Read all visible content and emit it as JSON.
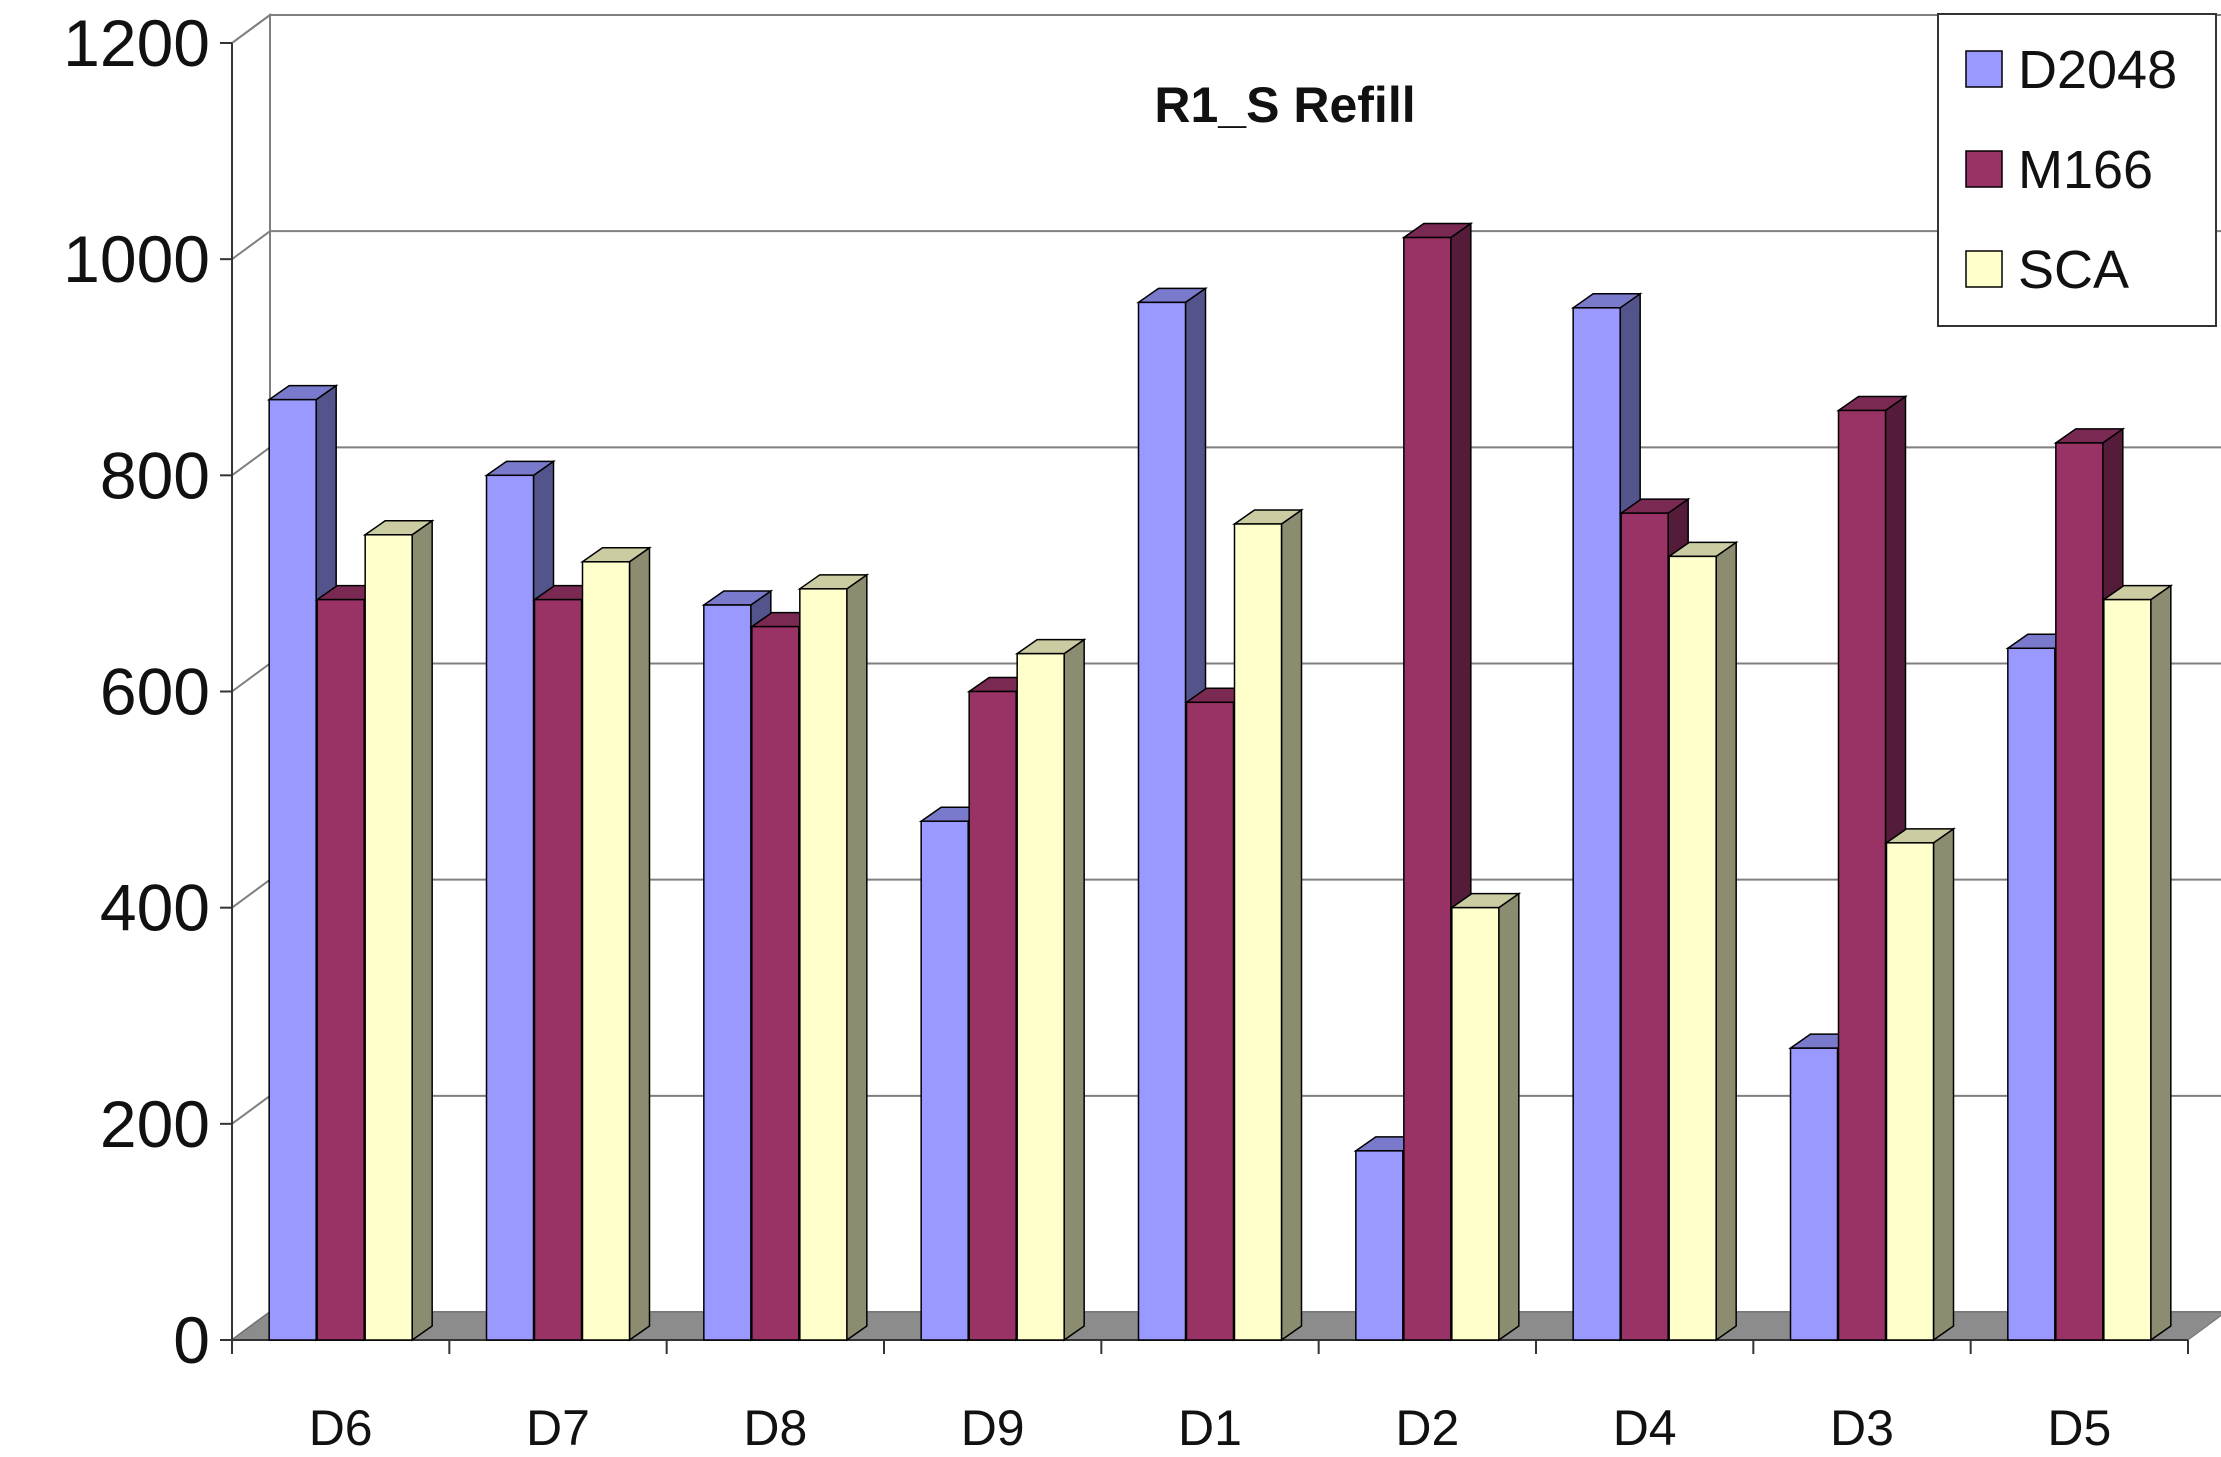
{
  "chart_data": {
    "type": "bar",
    "title": "R1_S Refill",
    "xlabel": "",
    "ylabel": "",
    "categories": [
      "D6",
      "D7",
      "D8",
      "D9",
      "D1",
      "D2",
      "D4",
      "D3",
      "D5"
    ],
    "series": [
      {
        "name": "D2048",
        "color": "#9999ff",
        "values": [
          870,
          800,
          680,
          480,
          960,
          175,
          955,
          270,
          640
        ]
      },
      {
        "name": "M166",
        "color": "#993366",
        "values": [
          685,
          685,
          660,
          600,
          590,
          1020,
          765,
          860,
          830
        ]
      },
      {
        "name": "SCA",
        "color": "#ffffcc",
        "values": [
          745,
          720,
          695,
          635,
          755,
          400,
          725,
          460,
          685
        ]
      }
    ],
    "y_ticks": [
      "0",
      "200",
      "400",
      "600",
      "800",
      "1000",
      "1200"
    ],
    "ylim": [
      0,
      1200
    ],
    "grid": true,
    "legend_position": "top-right"
  }
}
